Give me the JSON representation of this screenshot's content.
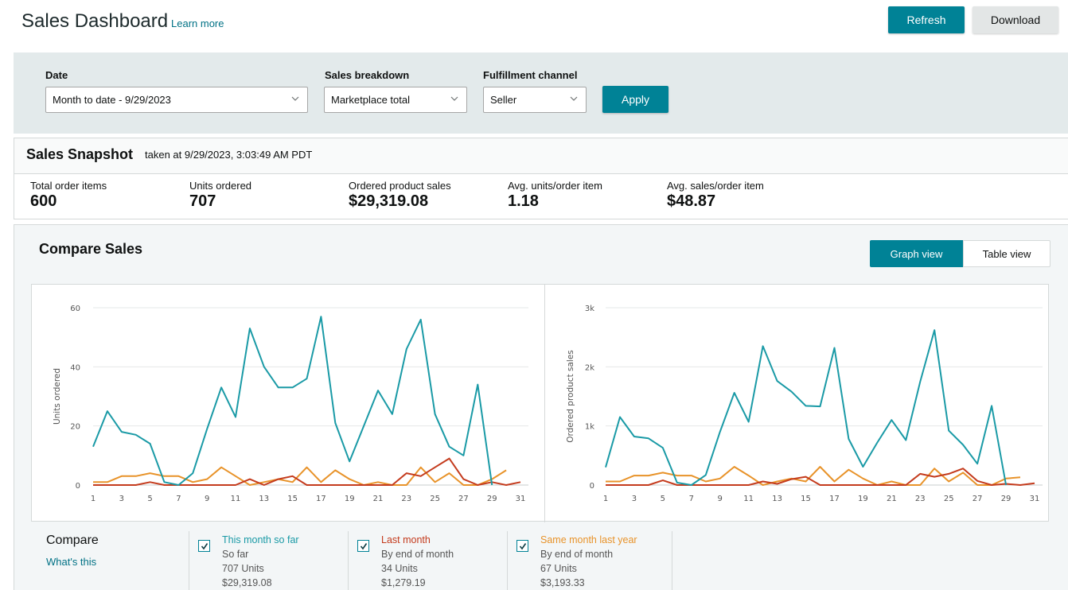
{
  "header": {
    "title": "Sales Dashboard",
    "learn_more": "Learn more",
    "refresh_label": "Refresh",
    "download_label": "Download"
  },
  "filters": {
    "date": {
      "label": "Date",
      "value": "Month to date - 9/29/2023"
    },
    "breakdown": {
      "label": "Sales breakdown",
      "value": "Marketplace total"
    },
    "channel": {
      "label": "Fulfillment channel",
      "value": "Seller"
    },
    "apply_label": "Apply"
  },
  "snapshot": {
    "title": "Sales Snapshot",
    "taken_at": "taken at 9/29/2023, 3:03:49 AM PDT",
    "metrics": [
      {
        "label": "Total order items",
        "value": "600"
      },
      {
        "label": "Units ordered",
        "value": "707"
      },
      {
        "label": "Ordered product sales",
        "value": "$29,319.08"
      },
      {
        "label": "Avg. units/order item",
        "value": "1.18"
      },
      {
        "label": "Avg. sales/order item",
        "value": "$48.87"
      }
    ]
  },
  "compare": {
    "title": "Compare Sales",
    "views": {
      "graph": "Graph view",
      "table": "Table view",
      "active": "graph"
    },
    "legend": {
      "title": "Compare",
      "whats_this": "What's this",
      "items": [
        {
          "name": "This month so far",
          "sub": "So far",
          "units": "707 Units",
          "sales": "$29,319.08",
          "checked": true,
          "color": "#1a9aa6"
        },
        {
          "name": "Last month",
          "sub": "By end of month",
          "units": "34 Units",
          "sales": "$1,279.19",
          "checked": true,
          "color": "#c43b1d"
        },
        {
          "name": "Same month last year",
          "sub": "By end of month",
          "units": "67 Units",
          "sales": "$3,193.33",
          "checked": true,
          "color": "#e8932a"
        }
      ]
    }
  },
  "chart_data": [
    {
      "type": "line",
      "title": "",
      "xlabel": "",
      "ylabel": "Units ordered",
      "xlim": [
        1,
        31
      ],
      "ylim": [
        0,
        60
      ],
      "xticks": [
        1,
        3,
        5,
        7,
        9,
        11,
        13,
        15,
        17,
        19,
        21,
        23,
        25,
        27,
        29,
        31
      ],
      "yticks": [
        0,
        20,
        40,
        60
      ],
      "ytick_labels": [
        "0",
        "20",
        "40",
        "60"
      ],
      "grid": true,
      "series": [
        {
          "name": "This month so far",
          "color": "#1a9aa6",
          "x": [
            1,
            2,
            3,
            4,
            5,
            6,
            7,
            8,
            9,
            10,
            11,
            12,
            13,
            14,
            15,
            16,
            17,
            18,
            19,
            20,
            21,
            22,
            23,
            24,
            25,
            26,
            27,
            28,
            29
          ],
          "values": [
            13,
            25,
            18,
            17,
            14,
            1,
            0,
            4,
            19,
            33,
            23,
            53,
            40,
            33,
            33,
            36,
            57,
            21,
            8,
            20,
            32,
            24,
            46,
            56,
            24,
            13,
            10,
            34,
            0
          ]
        },
        {
          "name": "Last month",
          "color": "#c43b1d",
          "x": [
            1,
            2,
            3,
            4,
            5,
            6,
            7,
            8,
            9,
            10,
            11,
            12,
            13,
            14,
            15,
            16,
            17,
            18,
            19,
            20,
            21,
            22,
            23,
            24,
            25,
            26,
            27,
            28,
            29,
            30,
            31
          ],
          "values": [
            0,
            0,
            0,
            0,
            1,
            0,
            0,
            0,
            0,
            0,
            0,
            2,
            0,
            2,
            3,
            0,
            0,
            0,
            0,
            0,
            0,
            0,
            4,
            3,
            6,
            9,
            2,
            0,
            1,
            0,
            1
          ]
        },
        {
          "name": "Same month last year",
          "color": "#e8932a",
          "x": [
            1,
            2,
            3,
            4,
            5,
            6,
            7,
            8,
            9,
            10,
            11,
            12,
            13,
            14,
            15,
            16,
            17,
            18,
            19,
            20,
            21,
            22,
            23,
            24,
            25,
            26,
            27,
            28,
            29,
            30
          ],
          "values": [
            1,
            1,
            3,
            3,
            4,
            3,
            3,
            1,
            2,
            6,
            3,
            0,
            1,
            2,
            1,
            6,
            1,
            5,
            2,
            0,
            1,
            0,
            0,
            6,
            1,
            4,
            0,
            0,
            2,
            5
          ]
        }
      ]
    },
    {
      "type": "line",
      "title": "",
      "xlabel": "",
      "ylabel": "Ordered product sales",
      "xlim": [
        1,
        31
      ],
      "ylim": [
        0,
        3000
      ],
      "xticks": [
        1,
        3,
        5,
        7,
        9,
        11,
        13,
        15,
        17,
        19,
        21,
        23,
        25,
        27,
        29,
        31
      ],
      "yticks": [
        0,
        1000,
        2000,
        3000
      ],
      "ytick_labels": [
        "0",
        "1k",
        "2k",
        "3k"
      ],
      "grid": true,
      "series": [
        {
          "name": "This month so far",
          "color": "#1a9aa6",
          "x": [
            1,
            2,
            3,
            4,
            5,
            6,
            7,
            8,
            9,
            10,
            11,
            12,
            13,
            14,
            15,
            16,
            17,
            18,
            19,
            20,
            21,
            22,
            23,
            24,
            25,
            26,
            27,
            28,
            29
          ],
          "values": [
            300,
            1150,
            820,
            790,
            630,
            40,
            0,
            170,
            900,
            1560,
            1070,
            2350,
            1760,
            1580,
            1340,
            1330,
            2320,
            780,
            310,
            720,
            1100,
            760,
            1750,
            2620,
            920,
            680,
            360,
            1340,
            0
          ]
        },
        {
          "name": "Last month",
          "color": "#c43b1d",
          "x": [
            1,
            2,
            3,
            4,
            5,
            6,
            7,
            8,
            9,
            10,
            11,
            12,
            13,
            14,
            15,
            16,
            17,
            18,
            19,
            20,
            21,
            22,
            23,
            24,
            25,
            26,
            27,
            28,
            29,
            30,
            31
          ],
          "values": [
            0,
            0,
            0,
            0,
            80,
            0,
            0,
            0,
            0,
            0,
            0,
            60,
            20,
            100,
            140,
            0,
            0,
            0,
            0,
            0,
            0,
            0,
            190,
            140,
            190,
            280,
            70,
            0,
            20,
            0,
            30
          ]
        },
        {
          "name": "Same month last year",
          "color": "#e8932a",
          "x": [
            1,
            2,
            3,
            4,
            5,
            6,
            7,
            8,
            9,
            10,
            11,
            12,
            13,
            14,
            15,
            16,
            17,
            18,
            19,
            20,
            21,
            22,
            23,
            24,
            25,
            26,
            27,
            28,
            29,
            30
          ],
          "values": [
            60,
            60,
            160,
            160,
            210,
            160,
            160,
            60,
            110,
            310,
            160,
            0,
            60,
            110,
            60,
            310,
            60,
            260,
            110,
            0,
            60,
            0,
            0,
            280,
            60,
            210,
            0,
            0,
            110,
            130
          ]
        }
      ]
    }
  ]
}
